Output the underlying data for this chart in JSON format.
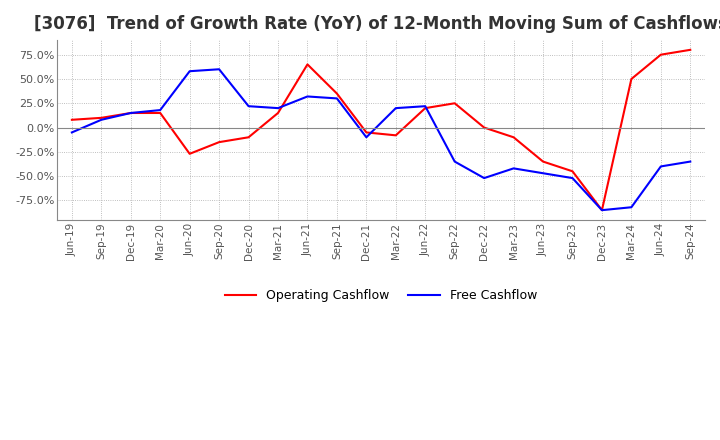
{
  "title": "[3076]  Trend of Growth Rate (YoY) of 12-Month Moving Sum of Cashflows",
  "title_fontsize": 12,
  "background_color": "#ffffff",
  "plot_background_color": "#ffffff",
  "grid_color": "#aaaaaa",
  "ylim": [
    -95,
    90
  ],
  "yticks": [
    -75.0,
    -50.0,
    -25.0,
    0.0,
    25.0,
    50.0,
    75.0
  ],
  "x_labels": [
    "Jun-19",
    "Sep-19",
    "Dec-19",
    "Mar-20",
    "Jun-20",
    "Sep-20",
    "Dec-20",
    "Mar-21",
    "Jun-21",
    "Sep-21",
    "Dec-21",
    "Mar-22",
    "Jun-22",
    "Sep-22",
    "Dec-22",
    "Mar-23",
    "Jun-23",
    "Sep-23",
    "Dec-23",
    "Mar-24",
    "Jun-24",
    "Sep-24"
  ],
  "operating_cashflow": [
    8.0,
    10.0,
    15.0,
    15.0,
    -27.0,
    -15.0,
    -10.0,
    15.0,
    65.0,
    35.0,
    -5.0,
    -8.0,
    20.0,
    25.0,
    0.0,
    -10.0,
    -35.0,
    -45.0,
    -85.0,
    50.0,
    75.0,
    80.0
  ],
  "free_cashflow": [
    -5.0,
    8.0,
    15.0,
    18.0,
    58.0,
    60.0,
    22.0,
    20.0,
    32.0,
    30.0,
    -10.0,
    20.0,
    22.0,
    -35.0,
    -52.0,
    -42.0,
    -47.0,
    -52.0,
    -85.0,
    -82.0,
    -40.0,
    -35.0
  ],
  "operating_color": "#ff0000",
  "free_color": "#0000ff",
  "legend_labels": [
    "Operating Cashflow",
    "Free Cashflow"
  ]
}
